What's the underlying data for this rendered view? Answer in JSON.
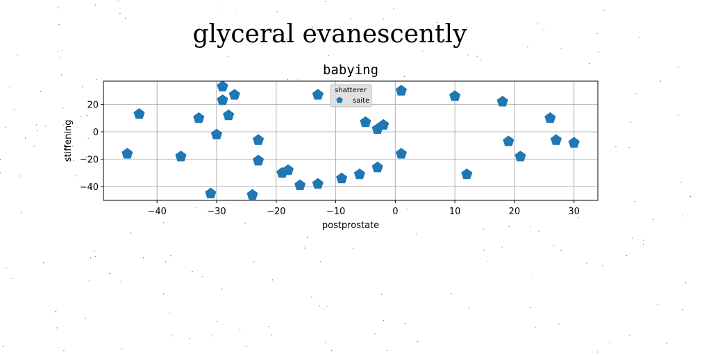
{
  "chart_data": {
    "type": "scatter",
    "suptitle": "glyceral evanescently",
    "title": "babying",
    "xlabel": "postprostate",
    "ylabel": "stiffening",
    "xlim": [
      -49,
      34
    ],
    "ylim": [
      -50,
      37
    ],
    "xticks": [
      -40,
      -30,
      -20,
      -10,
      0,
      10,
      20,
      30
    ],
    "yticks": [
      -40,
      -20,
      0,
      20
    ],
    "xtick_labels": [
      "−40",
      "−30",
      "−20",
      "−10",
      "0",
      "10",
      "20",
      "30"
    ],
    "ytick_labels": [
      "−40",
      "−20",
      "0",
      "20"
    ],
    "grid": true,
    "legend": {
      "title": "shatterer",
      "position": "top-center"
    },
    "series": [
      {
        "name": "saite",
        "color": "#1f77b4",
        "marker": "pentagon",
        "points": [
          {
            "x": -45,
            "y": -16
          },
          {
            "x": -43,
            "y": 13
          },
          {
            "x": -36,
            "y": -18
          },
          {
            "x": -33,
            "y": 10
          },
          {
            "x": -31,
            "y": -45
          },
          {
            "x": -30,
            "y": -2
          },
          {
            "x": -29,
            "y": 33
          },
          {
            "x": -29,
            "y": 23
          },
          {
            "x": -28,
            "y": 12
          },
          {
            "x": -27,
            "y": 27
          },
          {
            "x": -24,
            "y": -46
          },
          {
            "x": -23,
            "y": -6
          },
          {
            "x": -23,
            "y": -21
          },
          {
            "x": -19,
            "y": -30
          },
          {
            "x": -18,
            "y": -28
          },
          {
            "x": -16,
            "y": -39
          },
          {
            "x": -13,
            "y": 27
          },
          {
            "x": -13,
            "y": -38
          },
          {
            "x": -9,
            "y": -34
          },
          {
            "x": -6,
            "y": -31
          },
          {
            "x": -5,
            "y": 7
          },
          {
            "x": -3,
            "y": 2
          },
          {
            "x": -3,
            "y": -26
          },
          {
            "x": -2,
            "y": 5
          },
          {
            "x": 1,
            "y": 30
          },
          {
            "x": 1,
            "y": -16
          },
          {
            "x": 10,
            "y": 26
          },
          {
            "x": 12,
            "y": -31
          },
          {
            "x": 18,
            "y": 22
          },
          {
            "x": 19,
            "y": -7
          },
          {
            "x": 21,
            "y": -18
          },
          {
            "x": 26,
            "y": 10
          },
          {
            "x": 27,
            "y": -6
          },
          {
            "x": 30,
            "y": -8
          }
        ]
      }
    ]
  }
}
